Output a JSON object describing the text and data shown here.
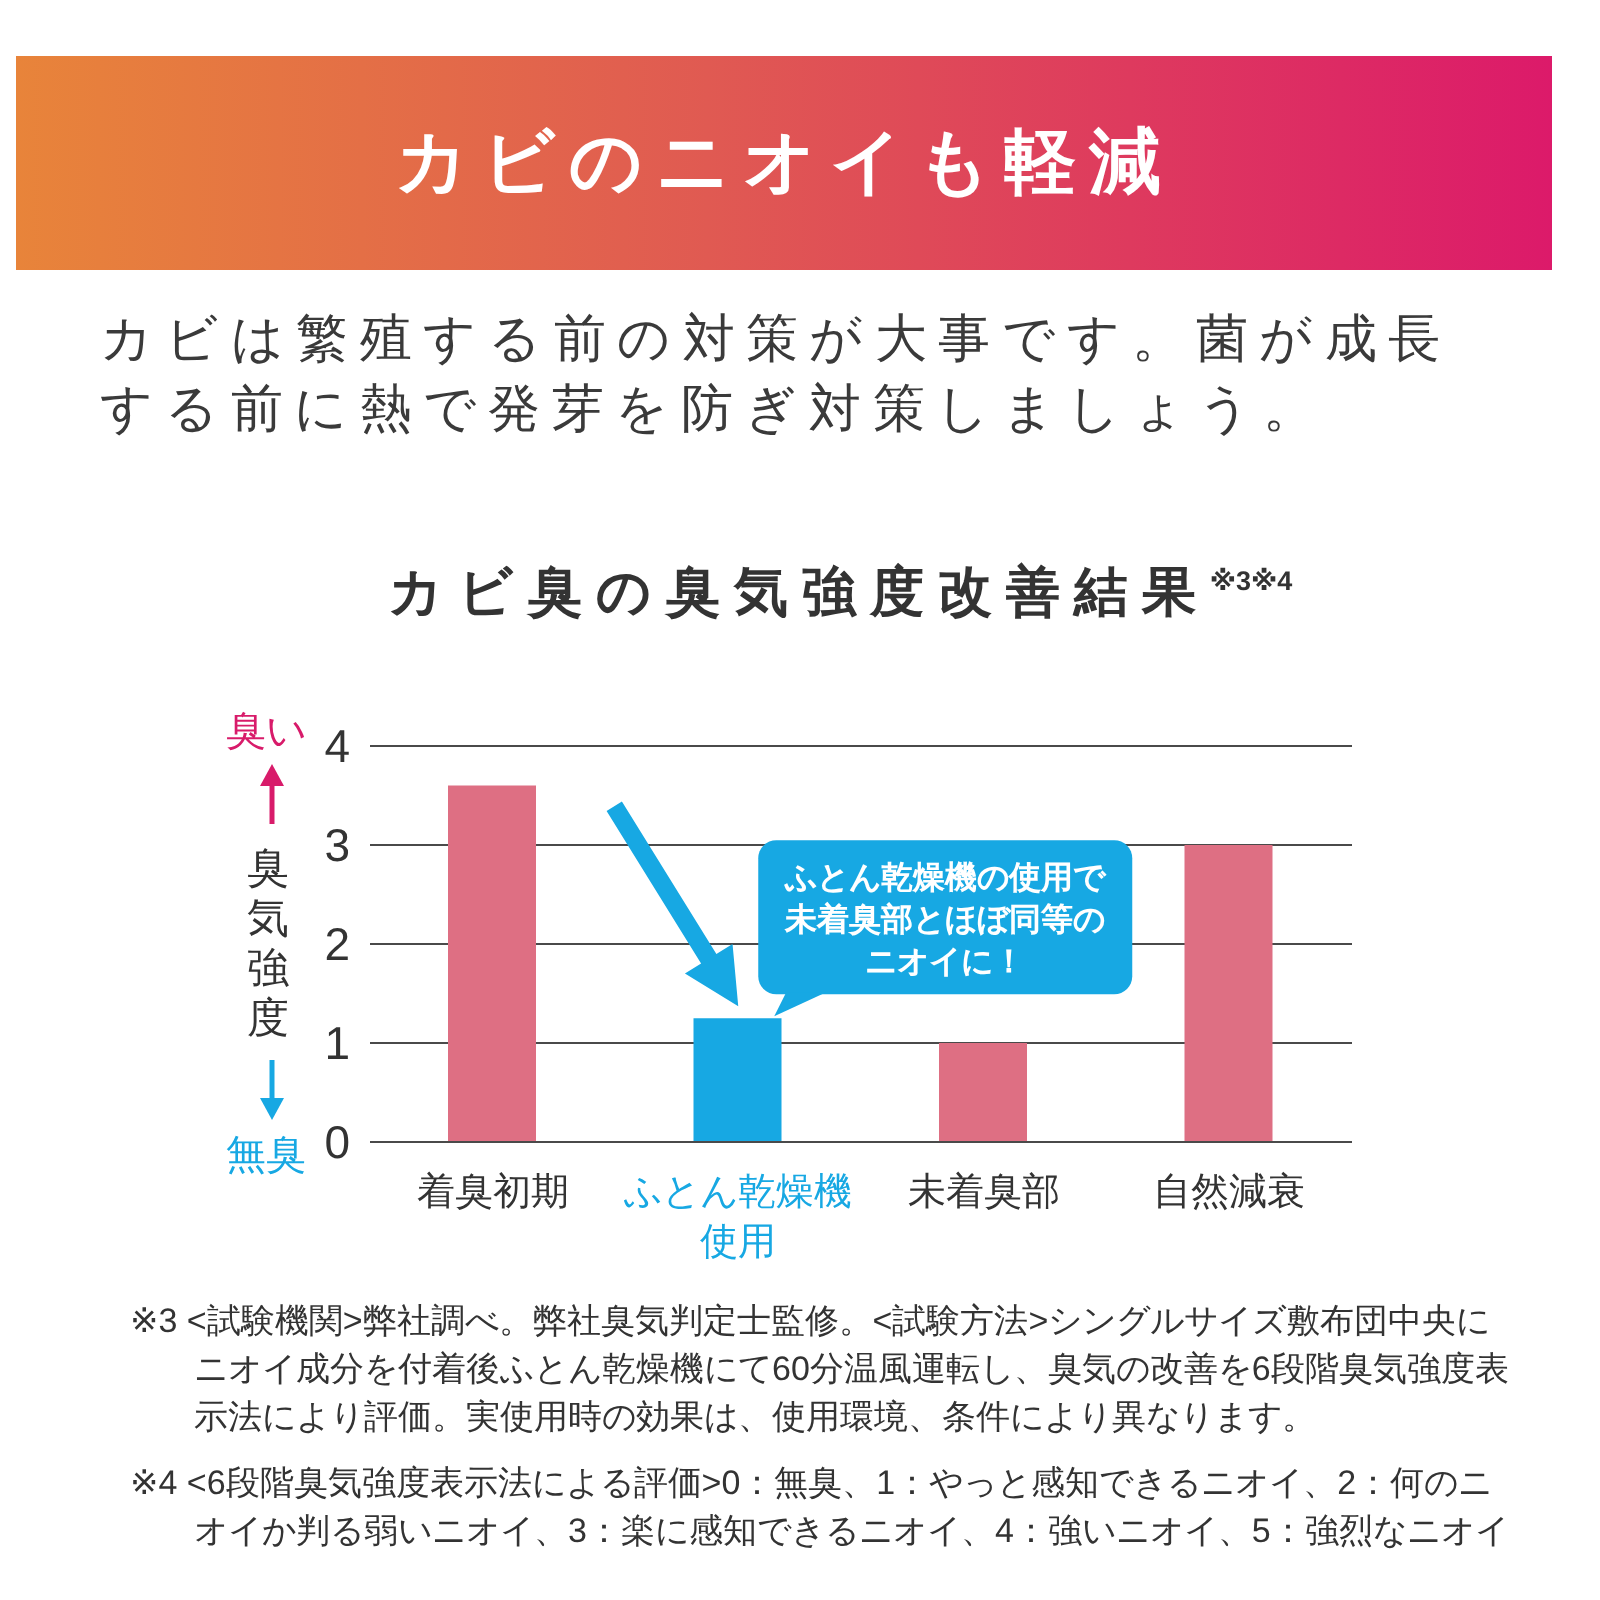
{
  "chart_data": {
    "type": "bar",
    "title": "カビ臭の臭気強度改善結果$^{※3※4}$",
    "ylabel": "臭気強度",
    "categories": [
      "着臭初期",
      "ふとん乾燥機使用",
      "未着臭部",
      "自然減衰"
    ],
    "values": [
      3.6,
      1.25,
      1,
      3
    ],
    "colors": [
      "#de6f83",
      "#17a8e3",
      "#de6f83",
      "#de6f83"
    ],
    "ylim": [
      0,
      4
    ],
    "yticks": [
      0,
      1,
      2,
      3,
      4
    ],
    "grid": "y",
    "annotations": [
      "カビのニオイも軽減",
      "カビは繁殖する前の対策が大事です。菌が成長する前に熱で発芽を防ぎ対策しましょう。",
      "臭い",
      "無臭",
      {
        "text": "ふとん乾燥機の使用で未着臭部とほぼ同等のニオイに！",
        "x": "ふとん乾燥機使用",
        "y": 1.25
      },
      "※3 <試験機関>弊社調べ。弊社臭気判定士監修。<試験方法>シングルサイズ敷布団中央にニオイ成分を付着後ふとん乾燥機にて60分温風運転し、臭気の改善を6段階臭気強度表示法により評価。実使用時の効果は、使用環境、条件により異なります。",
      "※4 <6段階臭気強度表示法による評価>0：無臭、1：やっと感知できるニオイ、2：何のニオイか判る弱いニオイ、3：楽に感知できるニオイ、4：強いニオイ、5：強烈なニオイ"
    ]
  }
}
